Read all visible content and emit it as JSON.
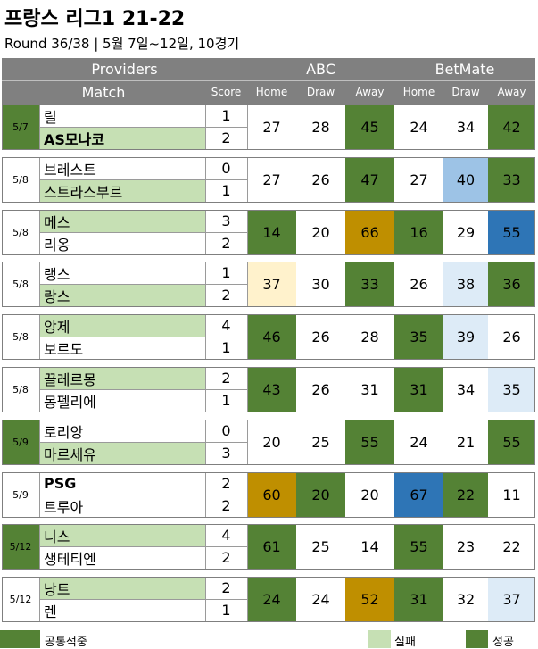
{
  "title": "프랑스 리그1 21-22",
  "subtitle": "Round 36/38  | 5월 7일~12일, 10경기",
  "header": {
    "providers": "Providers",
    "match": "Match",
    "score": "Score",
    "provider_names": [
      "ABC",
      "BetMate"
    ],
    "sub_cols": [
      "Home",
      "Draw",
      "Away"
    ]
  },
  "colors": {
    "header_gray": "#808080",
    "success_dark_green": "#548235",
    "fail_light_green": "#c6e0b4",
    "gold": "#bf8f00",
    "blue": "#2e75b6",
    "light_blue": "#9dc3e6",
    "pale_blue": "#ddebf7",
    "pale_yellow": "#fff2cc",
    "white": "#ffffff"
  },
  "legend": [
    {
      "label": "공통적중",
      "color": "#548235"
    },
    {
      "label": "실패",
      "color": "#c6e0b4"
    },
    {
      "label": "성공",
      "color": "#548235"
    }
  ],
  "matches": [
    {
      "date": "5/7",
      "date_color": "#548235",
      "home": {
        "name": "릴",
        "score": "1",
        "bold": false,
        "bg": "#ffffff"
      },
      "away": {
        "name": "AS모나코",
        "score": "2",
        "bold": true,
        "bg": "#c6e0b4"
      },
      "abc": [
        {
          "v": "27",
          "bg": "#ffffff"
        },
        {
          "v": "28",
          "bg": "#ffffff"
        },
        {
          "v": "45",
          "bg": "#548235"
        }
      ],
      "betmate": [
        {
          "v": "24",
          "bg": "#ffffff"
        },
        {
          "v": "34",
          "bg": "#ffffff"
        },
        {
          "v": "42",
          "bg": "#548235"
        }
      ]
    },
    {
      "date": "5/8",
      "date_color": "#ffffff",
      "home": {
        "name": "브레스트",
        "score": "0",
        "bold": false,
        "bg": "#ffffff"
      },
      "away": {
        "name": "스트라스부르",
        "score": "1",
        "bold": false,
        "bg": "#c6e0b4"
      },
      "abc": [
        {
          "v": "27",
          "bg": "#ffffff"
        },
        {
          "v": "26",
          "bg": "#ffffff"
        },
        {
          "v": "47",
          "bg": "#548235"
        }
      ],
      "betmate": [
        {
          "v": "27",
          "bg": "#ffffff"
        },
        {
          "v": "40",
          "bg": "#9dc3e6"
        },
        {
          "v": "33",
          "bg": "#548235"
        }
      ]
    },
    {
      "date": "5/8",
      "date_color": "#ffffff",
      "home": {
        "name": "메스",
        "score": "3",
        "bold": false,
        "bg": "#c6e0b4"
      },
      "away": {
        "name": "리옹",
        "score": "2",
        "bold": false,
        "bg": "#ffffff"
      },
      "abc": [
        {
          "v": "14",
          "bg": "#548235"
        },
        {
          "v": "20",
          "bg": "#ffffff"
        },
        {
          "v": "66",
          "bg": "#bf8f00"
        }
      ],
      "betmate": [
        {
          "v": "16",
          "bg": "#548235"
        },
        {
          "v": "29",
          "bg": "#ffffff"
        },
        {
          "v": "55",
          "bg": "#2e75b6"
        }
      ]
    },
    {
      "date": "5/8",
      "date_color": "#ffffff",
      "home": {
        "name": "랭스",
        "score": "1",
        "bold": false,
        "bg": "#ffffff"
      },
      "away": {
        "name": "랑스",
        "score": "2",
        "bold": false,
        "bg": "#c6e0b4"
      },
      "abc": [
        {
          "v": "37",
          "bg": "#fff2cc"
        },
        {
          "v": "30",
          "bg": "#ffffff"
        },
        {
          "v": "33",
          "bg": "#548235"
        }
      ],
      "betmate": [
        {
          "v": "26",
          "bg": "#ffffff"
        },
        {
          "v": "38",
          "bg": "#ddebf7"
        },
        {
          "v": "36",
          "bg": "#548235"
        }
      ]
    },
    {
      "date": "5/8",
      "date_color": "#ffffff",
      "home": {
        "name": "앙제",
        "score": "4",
        "bold": false,
        "bg": "#c6e0b4"
      },
      "away": {
        "name": "보르도",
        "score": "1",
        "bold": false,
        "bg": "#ffffff"
      },
      "abc": [
        {
          "v": "46",
          "bg": "#548235"
        },
        {
          "v": "26",
          "bg": "#ffffff"
        },
        {
          "v": "28",
          "bg": "#ffffff"
        }
      ],
      "betmate": [
        {
          "v": "35",
          "bg": "#548235"
        },
        {
          "v": "39",
          "bg": "#ddebf7"
        },
        {
          "v": "26",
          "bg": "#ffffff"
        }
      ]
    },
    {
      "date": "5/8",
      "date_color": "#ffffff",
      "home": {
        "name": "끌레르몽",
        "score": "2",
        "bold": false,
        "bg": "#c6e0b4"
      },
      "away": {
        "name": "몽펠리에",
        "score": "1",
        "bold": false,
        "bg": "#ffffff"
      },
      "abc": [
        {
          "v": "43",
          "bg": "#548235"
        },
        {
          "v": "26",
          "bg": "#ffffff"
        },
        {
          "v": "31",
          "bg": "#ffffff"
        }
      ],
      "betmate": [
        {
          "v": "31",
          "bg": "#548235"
        },
        {
          "v": "34",
          "bg": "#ffffff"
        },
        {
          "v": "35",
          "bg": "#ddebf7"
        }
      ]
    },
    {
      "date": "5/9",
      "date_color": "#548235",
      "home": {
        "name": "로리앙",
        "score": "0",
        "bold": false,
        "bg": "#ffffff"
      },
      "away": {
        "name": "마르세유",
        "score": "3",
        "bold": false,
        "bg": "#c6e0b4"
      },
      "abc": [
        {
          "v": "20",
          "bg": "#ffffff"
        },
        {
          "v": "25",
          "bg": "#ffffff"
        },
        {
          "v": "55",
          "bg": "#548235"
        }
      ],
      "betmate": [
        {
          "v": "24",
          "bg": "#ffffff"
        },
        {
          "v": "21",
          "bg": "#ffffff"
        },
        {
          "v": "55",
          "bg": "#548235"
        }
      ]
    },
    {
      "date": "5/9",
      "date_color": "#ffffff",
      "home": {
        "name": "PSG",
        "score": "2",
        "bold": true,
        "bg": "#ffffff"
      },
      "away": {
        "name": "트루아",
        "score": "2",
        "bold": false,
        "bg": "#ffffff"
      },
      "abc": [
        {
          "v": "60",
          "bg": "#bf8f00"
        },
        {
          "v": "20",
          "bg": "#548235"
        },
        {
          "v": "20",
          "bg": "#ffffff"
        }
      ],
      "betmate": [
        {
          "v": "67",
          "bg": "#2e75b6"
        },
        {
          "v": "22",
          "bg": "#548235"
        },
        {
          "v": "11",
          "bg": "#ffffff"
        }
      ]
    },
    {
      "date": "5/12",
      "date_color": "#548235",
      "home": {
        "name": "니스",
        "score": "4",
        "bold": false,
        "bg": "#c6e0b4"
      },
      "away": {
        "name": "생테티엔",
        "score": "2",
        "bold": false,
        "bg": "#ffffff"
      },
      "abc": [
        {
          "v": "61",
          "bg": "#548235"
        },
        {
          "v": "25",
          "bg": "#ffffff"
        },
        {
          "v": "14",
          "bg": "#ffffff"
        }
      ],
      "betmate": [
        {
          "v": "55",
          "bg": "#548235"
        },
        {
          "v": "23",
          "bg": "#ffffff"
        },
        {
          "v": "22",
          "bg": "#ffffff"
        }
      ]
    },
    {
      "date": "5/12",
      "date_color": "#ffffff",
      "home": {
        "name": "낭트",
        "score": "2",
        "bold": false,
        "bg": "#c6e0b4"
      },
      "away": {
        "name": "렌",
        "score": "1",
        "bold": false,
        "bg": "#ffffff"
      },
      "abc": [
        {
          "v": "24",
          "bg": "#548235"
        },
        {
          "v": "24",
          "bg": "#ffffff"
        },
        {
          "v": "52",
          "bg": "#bf8f00"
        }
      ],
      "betmate": [
        {
          "v": "31",
          "bg": "#548235"
        },
        {
          "v": "32",
          "bg": "#ffffff"
        },
        {
          "v": "37",
          "bg": "#ddebf7"
        }
      ]
    }
  ]
}
